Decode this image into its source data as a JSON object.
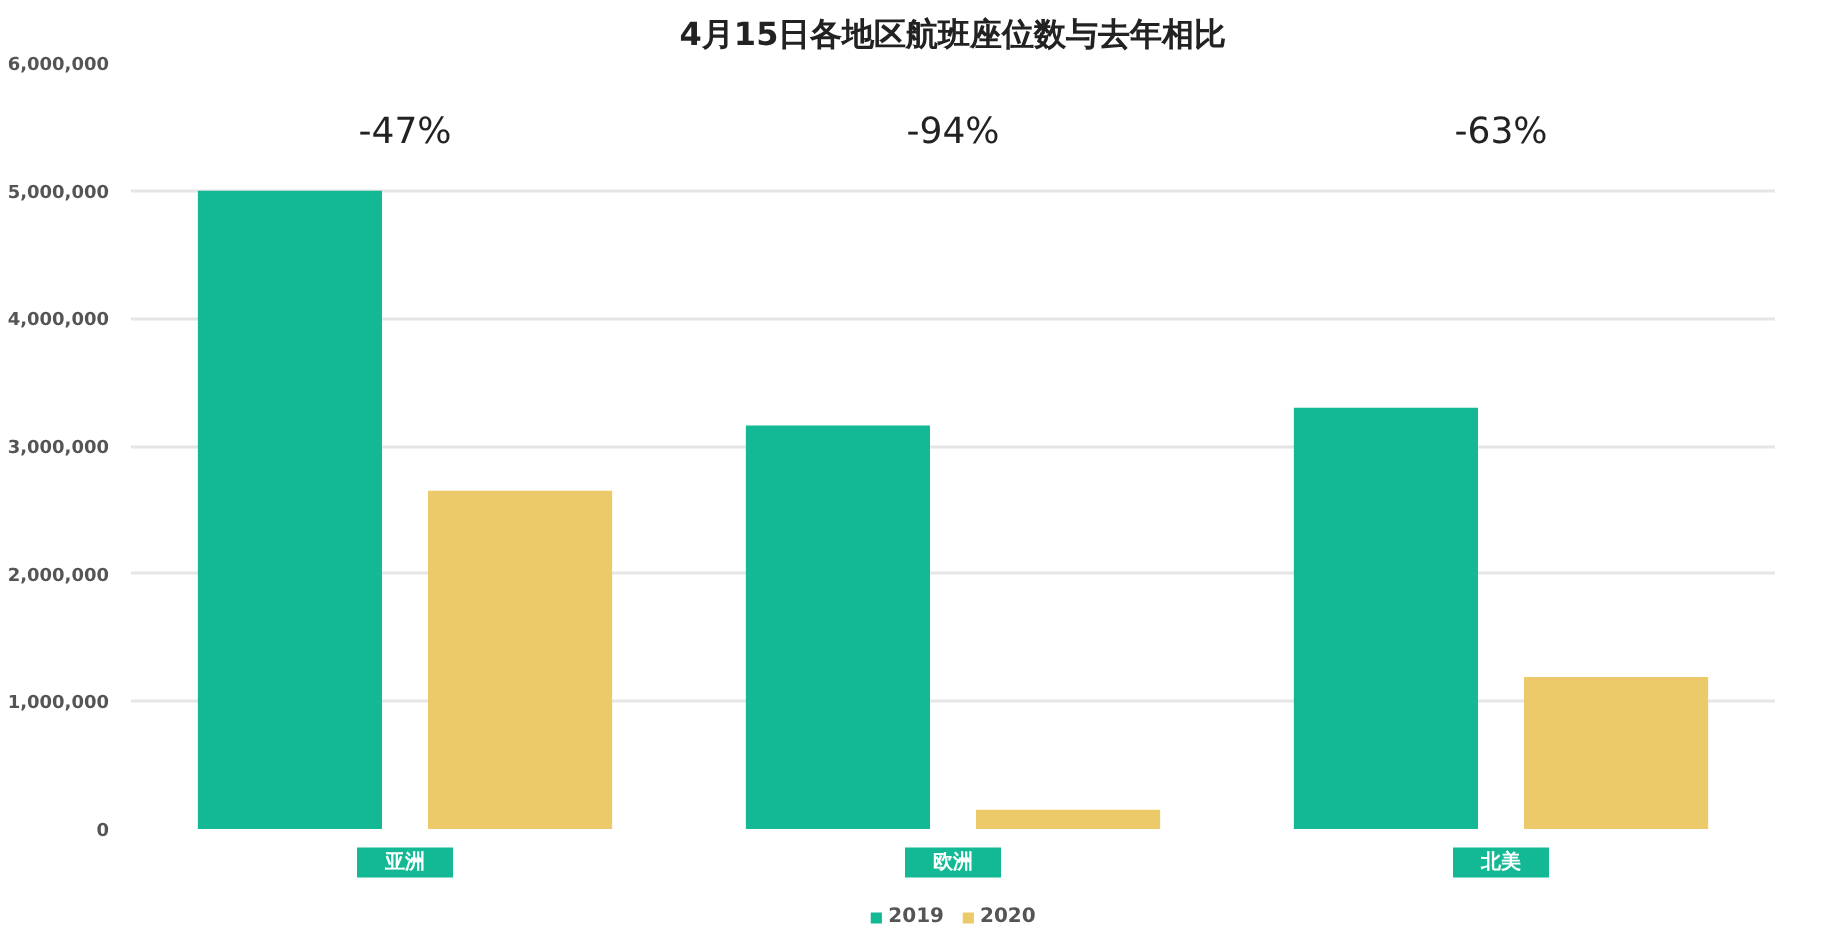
{
  "chart_data": {
    "type": "bar",
    "title": "4月15日各地区航班座位数与去年相比",
    "categories": [
      "亚洲",
      "欧洲",
      "北美"
    ],
    "series": [
      {
        "name": "2019",
        "color": "#13b894",
        "values": [
          5000000,
          3160000,
          3300000
        ]
      },
      {
        "name": "2020",
        "color": "#ecca6a",
        "values": [
          2650000,
          150000,
          1190000
        ]
      }
    ],
    "ylim": [
      0,
      6000000
    ],
    "yticks": [
      0,
      {
        "value": 1000000,
        "label": "1,000,000"
      },
      {
        "value": 2000000,
        "label": "2,000,000"
      },
      {
        "value": 3000000,
        "label": "3,000,000"
      },
      {
        "value": 4000000,
        "label": "4,000,000"
      },
      {
        "value": 5000000,
        "label": "5,000,000"
      },
      {
        "value": 6000000,
        "label": "6,000,000"
      }
    ],
    "grid": "y",
    "legend": "bottom",
    "annotations": [
      "-47%",
      "-94%",
      "-63%"
    ]
  }
}
